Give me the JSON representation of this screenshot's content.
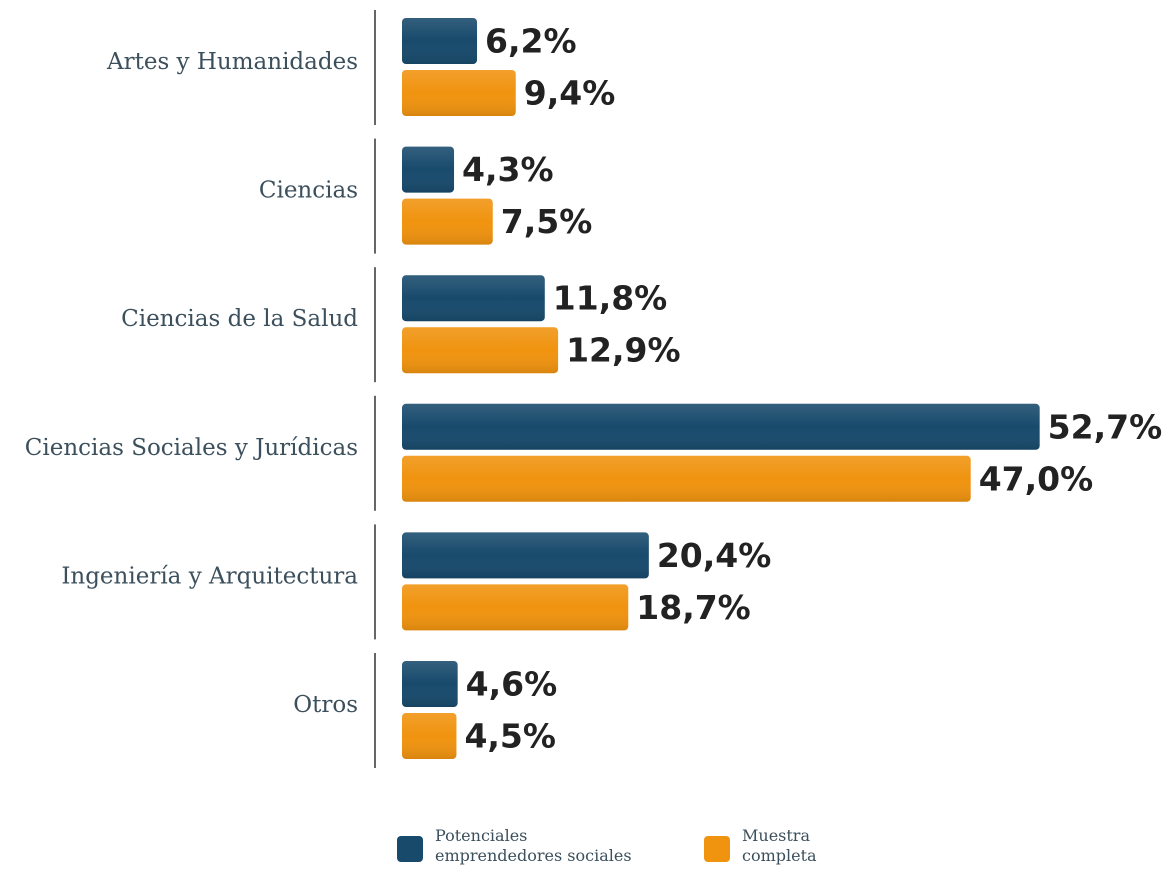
{
  "chart_data": {
    "type": "bar",
    "orientation": "horizontal",
    "categories": [
      "Artes y Humanidades",
      "Ciencias",
      "Ciencias de la Salud",
      "Ciencias Sociales y Jurídicas",
      "Ingeniería y Arquitectura",
      "Otros"
    ],
    "series": [
      {
        "name": "Potenciales emprendedores sociales",
        "color": "#184a6c",
        "values": [
          6.2,
          4.3,
          11.8,
          52.7,
          20.4,
          4.6
        ],
        "value_labels": [
          "6,2%",
          "4,3%",
          "11,8%",
          "52,7%",
          "20,4%",
          "4,6%"
        ]
      },
      {
        "name": "Muestra completa",
        "color": "#f0930f",
        "values": [
          9.4,
          7.5,
          12.9,
          47.0,
          18.7,
          4.5
        ],
        "value_labels": [
          "9,4%",
          "7,5%",
          "12,9%",
          "47,0%",
          "18,7%",
          "4,5%"
        ]
      }
    ]
  }
}
